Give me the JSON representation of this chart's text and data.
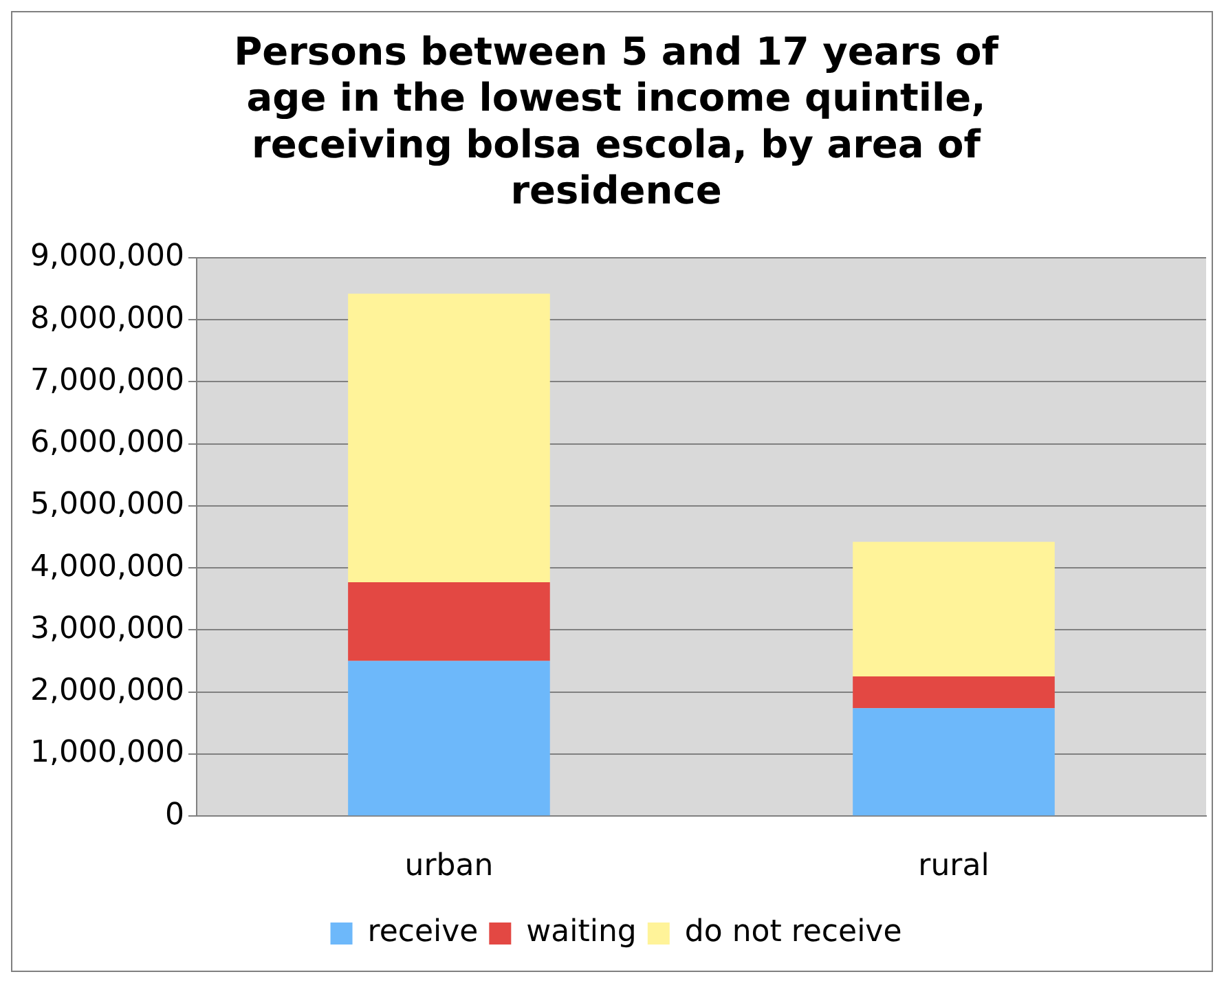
{
  "chart_data": {
    "type": "bar",
    "title": "Persons between 5 and 17 years of age in the lowest income quintile, receiving bolsa escola, by area of residence",
    "categories": [
      "urban",
      "rural"
    ],
    "stacked": true,
    "series": [
      {
        "name": "receive",
        "color": "#6db8fa",
        "values": [
          2500000,
          1740000
        ]
      },
      {
        "name": "waiting",
        "color": "#e34843",
        "values": [
          1270000,
          510000
        ]
      },
      {
        "name": "do not receive",
        "color": "#fff399",
        "values": [
          4650000,
          2170000
        ]
      }
    ],
    "ylim": [
      0,
      9000000
    ],
    "yticks": [
      0,
      {
        "value": 1000000,
        "label": "1,000,000"
      },
      {
        "value": 2000000,
        "label": "2,000,000"
      },
      {
        "value": 3000000,
        "label": "3,000,000"
      },
      {
        "value": 4000000,
        "label": "4,000,000"
      },
      {
        "value": 5000000,
        "label": "5,000,000"
      },
      {
        "value": 6000000,
        "label": "6,000,000"
      },
      {
        "value": 7000000,
        "label": "7,000,000"
      },
      {
        "value": 8000000,
        "label": "8,000,000"
      },
      {
        "value": 9000000,
        "label": "9,000,000"
      }
    ],
    "grid": "y",
    "legend": "bottom"
  }
}
